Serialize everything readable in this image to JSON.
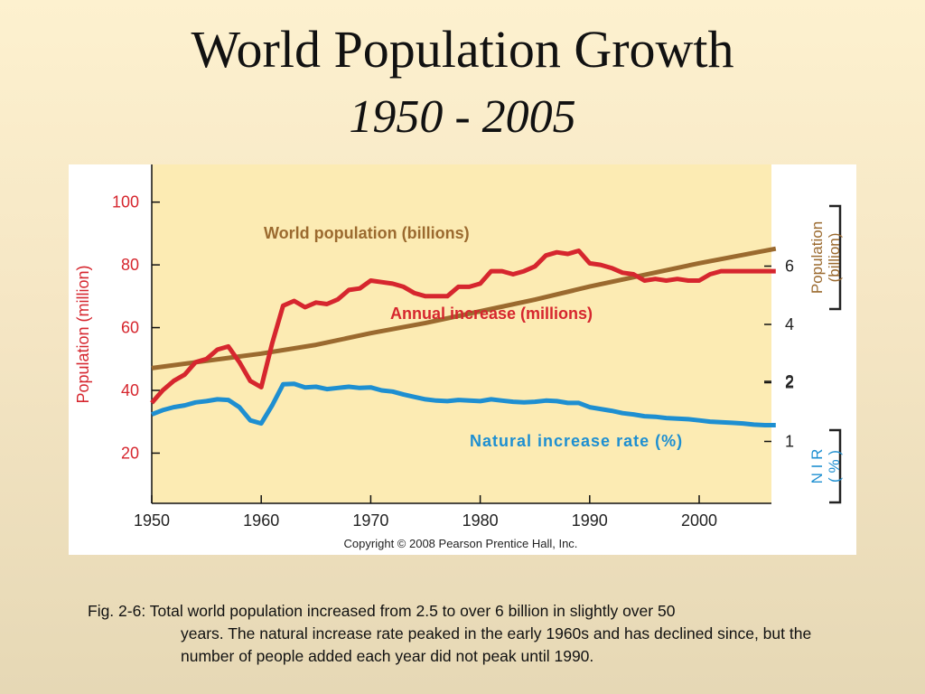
{
  "slide": {
    "title": "World Population Growth",
    "subtitle": "1950 - 2005",
    "caption_line1": "Fig. 2-6: Total world population increased from 2.5 to over 6 billion in slightly over 50",
    "caption_line2": "years. The natural increase rate peaked in the early 1960s and has declined since, but the number of people added each year did not peak until 1990."
  },
  "chart_data": {
    "type": "line",
    "title": "",
    "copyright": "Copyright © 2008 Pearson Prentice Hall, Inc.",
    "xlim": [
      1950,
      2007
    ],
    "xticks": [
      1950,
      1960,
      1970,
      1980,
      1990,
      2000
    ],
    "left_axis": {
      "label": "Population (million)",
      "ticks": [
        20,
        40,
        60,
        80,
        100
      ],
      "range": [
        4,
        112
      ],
      "color": "#d6262e"
    },
    "right_axis_population": {
      "label_lines": [
        "Population",
        "(billion)"
      ],
      "ticks": [
        2,
        4,
        6
      ],
      "color": "#9b6a2f"
    },
    "right_axis_nir": {
      "label_lines": [
        "N I R",
        "( % )"
      ],
      "ticks": [
        1,
        2
      ],
      "color": "#1e8fd1"
    },
    "series": [
      {
        "name": "World population (billions)",
        "color": "#9b6a2f",
        "x": [
          1950,
          1955,
          1960,
          1965,
          1970,
          1975,
          1980,
          1985,
          1990,
          1995,
          2000,
          2007
        ],
        "values": [
          2.5,
          2.75,
          3.0,
          3.3,
          3.7,
          4.05,
          4.45,
          4.85,
          5.3,
          5.7,
          6.1,
          6.6
        ]
      },
      {
        "name": "Annual increase (millions)",
        "color": "#d6262e",
        "x": [
          1950,
          1951,
          1952,
          1953,
          1954,
          1955,
          1956,
          1957,
          1958,
          1959,
          1960,
          1961,
          1962,
          1963,
          1964,
          1965,
          1966,
          1967,
          1968,
          1969,
          1970,
          1971,
          1972,
          1973,
          1974,
          1975,
          1976,
          1977,
          1978,
          1979,
          1980,
          1981,
          1982,
          1983,
          1984,
          1985,
          1986,
          1987,
          1988,
          1989,
          1990,
          1991,
          1992,
          1993,
          1994,
          1995,
          1996,
          1997,
          1998,
          1999,
          2000,
          2001,
          2002,
          2003,
          2004,
          2005,
          2006,
          2007
        ],
        "values": [
          36,
          40,
          43,
          45,
          49,
          50,
          53,
          54,
          49,
          43,
          41,
          55,
          67,
          68.5,
          66.5,
          68,
          67.5,
          69,
          72,
          72.5,
          75,
          74.5,
          74,
          73,
          71,
          70,
          70,
          70,
          73,
          73,
          74,
          78,
          78,
          77,
          78,
          79.5,
          83,
          84,
          83.5,
          84.5,
          80.5,
          80,
          79,
          77.5,
          77,
          75,
          75.5,
          75,
          75.5,
          75,
          75,
          77,
          78,
          78,
          78,
          78,
          78,
          78
        ]
      },
      {
        "name": "Natural increase rate (%)",
        "color": "#1e8fd1",
        "x": [
          1950,
          1951,
          1952,
          1953,
          1954,
          1955,
          1956,
          1957,
          1958,
          1959,
          1960,
          1961,
          1962,
          1963,
          1964,
          1965,
          1966,
          1967,
          1968,
          1969,
          1970,
          1971,
          1972,
          1973,
          1974,
          1975,
          1976,
          1977,
          1978,
          1979,
          1980,
          1981,
          1982,
          1983,
          1984,
          1985,
          1986,
          1987,
          1988,
          1989,
          1990,
          1991,
          1992,
          1993,
          1994,
          1995,
          1996,
          1997,
          1998,
          1999,
          2000,
          2001,
          2002,
          2003,
          2004,
          2005,
          2006,
          2007
        ],
        "values": [
          1.45,
          1.52,
          1.57,
          1.6,
          1.65,
          1.67,
          1.7,
          1.69,
          1.57,
          1.35,
          1.3,
          1.6,
          1.95,
          1.96,
          1.9,
          1.91,
          1.87,
          1.89,
          1.91,
          1.89,
          1.9,
          1.85,
          1.83,
          1.78,
          1.74,
          1.7,
          1.68,
          1.67,
          1.69,
          1.68,
          1.67,
          1.7,
          1.68,
          1.66,
          1.65,
          1.66,
          1.68,
          1.67,
          1.64,
          1.64,
          1.57,
          1.54,
          1.51,
          1.47,
          1.45,
          1.42,
          1.41,
          1.39,
          1.38,
          1.37,
          1.35,
          1.33,
          1.32,
          1.31,
          1.3,
          1.28,
          1.27,
          1.27
        ]
      }
    ],
    "annotations": [
      "World population (billions)",
      "Annual increase (millions)",
      "Natural increase rate (%)"
    ],
    "grid": false
  },
  "colors": {
    "plot_background": "#fcebb3",
    "axis": "#111111"
  }
}
